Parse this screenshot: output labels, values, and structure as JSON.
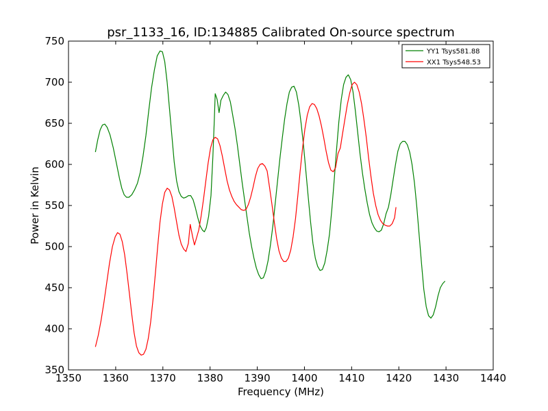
{
  "chart_data": {
    "type": "line",
    "title": "psr_1133_16, ID:134885 Calibrated On-source spectrum",
    "xlabel": "Frequency (MHz)",
    "ylabel": "Power in Kelvin",
    "xlim": [
      1350,
      1440
    ],
    "ylim": [
      350,
      750
    ],
    "xticks": [
      1350,
      1360,
      1370,
      1380,
      1390,
      1400,
      1410,
      1420,
      1430,
      1440
    ],
    "yticks": [
      350,
      400,
      450,
      500,
      550,
      600,
      650,
      700,
      750
    ],
    "grid": false,
    "legend_position": "top-right",
    "series": [
      {
        "name": "YY1 Tsys581.88",
        "color": "#008000",
        "points": [
          [
            1355.7,
            615
          ],
          [
            1356.2,
            630
          ],
          [
            1356.7,
            642
          ],
          [
            1357.2,
            648
          ],
          [
            1357.7,
            649
          ],
          [
            1358.2,
            645
          ],
          [
            1358.8,
            636
          ],
          [
            1359.5,
            620
          ],
          [
            1360.2,
            600
          ],
          [
            1360.8,
            583
          ],
          [
            1361.3,
            571
          ],
          [
            1361.8,
            563
          ],
          [
            1362.3,
            560
          ],
          [
            1362.8,
            560
          ],
          [
            1363.4,
            563
          ],
          [
            1364.0,
            569
          ],
          [
            1364.6,
            577
          ],
          [
            1365.2,
            590
          ],
          [
            1365.8,
            610
          ],
          [
            1366.4,
            635
          ],
          [
            1367.0,
            665
          ],
          [
            1367.6,
            693
          ],
          [
            1368.2,
            715
          ],
          [
            1368.8,
            732
          ],
          [
            1369.4,
            738
          ],
          [
            1369.9,
            737
          ],
          [
            1370.4,
            725
          ],
          [
            1370.9,
            700
          ],
          [
            1371.4,
            668
          ],
          [
            1371.9,
            635
          ],
          [
            1372.4,
            603
          ],
          [
            1372.9,
            580
          ],
          [
            1373.4,
            567
          ],
          [
            1373.9,
            561
          ],
          [
            1374.4,
            559
          ],
          [
            1374.9,
            560
          ],
          [
            1375.4,
            562
          ],
          [
            1375.9,
            562
          ],
          [
            1376.4,
            557
          ],
          [
            1376.9,
            547
          ],
          [
            1377.4,
            535
          ],
          [
            1377.9,
            525
          ],
          [
            1378.4,
            520
          ],
          [
            1378.8,
            518
          ],
          [
            1379.2,
            523
          ],
          [
            1379.7,
            537
          ],
          [
            1380.2,
            562
          ],
          [
            1380.6,
            610
          ],
          [
            1380.9,
            655
          ],
          [
            1381.1,
            686
          ],
          [
            1381.5,
            679
          ],
          [
            1381.9,
            663
          ],
          [
            1382.3,
            678
          ],
          [
            1382.8,
            684
          ],
          [
            1383.3,
            688
          ],
          [
            1383.8,
            685
          ],
          [
            1384.3,
            676
          ],
          [
            1384.8,
            660
          ],
          [
            1385.3,
            643
          ],
          [
            1385.8,
            623
          ],
          [
            1386.3,
            600
          ],
          [
            1386.8,
            578
          ],
          [
            1387.3,
            557
          ],
          [
            1387.8,
            537
          ],
          [
            1388.3,
            517
          ],
          [
            1388.8,
            500
          ],
          [
            1389.3,
            486
          ],
          [
            1389.8,
            474
          ],
          [
            1390.3,
            466
          ],
          [
            1390.8,
            461
          ],
          [
            1391.3,
            462
          ],
          [
            1391.8,
            470
          ],
          [
            1392.3,
            483
          ],
          [
            1392.8,
            502
          ],
          [
            1393.3,
            525
          ],
          [
            1393.8,
            552
          ],
          [
            1394.3,
            580
          ],
          [
            1394.8,
            607
          ],
          [
            1395.3,
            632
          ],
          [
            1395.8,
            655
          ],
          [
            1396.3,
            674
          ],
          [
            1396.8,
            688
          ],
          [
            1397.3,
            694
          ],
          [
            1397.8,
            695
          ],
          [
            1398.3,
            688
          ],
          [
            1398.8,
            672
          ],
          [
            1399.3,
            650
          ],
          [
            1399.8,
            623
          ],
          [
            1400.3,
            592
          ],
          [
            1400.8,
            560
          ],
          [
            1401.3,
            530
          ],
          [
            1401.8,
            504
          ],
          [
            1402.3,
            486
          ],
          [
            1402.8,
            476
          ],
          [
            1403.3,
            471
          ],
          [
            1403.8,
            472
          ],
          [
            1404.3,
            480
          ],
          [
            1404.8,
            495
          ],
          [
            1405.3,
            515
          ],
          [
            1405.8,
            545
          ],
          [
            1406.3,
            580
          ],
          [
            1406.8,
            618
          ],
          [
            1407.3,
            652
          ],
          [
            1407.8,
            679
          ],
          [
            1408.3,
            697
          ],
          [
            1408.8,
            706
          ],
          [
            1409.3,
            709
          ],
          [
            1409.8,
            703
          ],
          [
            1410.3,
            688
          ],
          [
            1410.8,
            665
          ],
          [
            1411.3,
            638
          ],
          [
            1411.8,
            612
          ],
          [
            1412.3,
            589
          ],
          [
            1412.8,
            570
          ],
          [
            1413.3,
            553
          ],
          [
            1413.8,
            539
          ],
          [
            1414.3,
            529
          ],
          [
            1414.8,
            523
          ],
          [
            1415.3,
            519
          ],
          [
            1415.8,
            518
          ],
          [
            1416.3,
            520
          ],
          [
            1416.8,
            528
          ],
          [
            1417.3,
            540
          ],
          [
            1417.8,
            548
          ],
          [
            1418.3,
            563
          ],
          [
            1418.8,
            582
          ],
          [
            1419.3,
            600
          ],
          [
            1419.8,
            616
          ],
          [
            1420.3,
            625
          ],
          [
            1420.8,
            628
          ],
          [
            1421.3,
            628
          ],
          [
            1421.8,
            624
          ],
          [
            1422.3,
            615
          ],
          [
            1422.8,
            600
          ],
          [
            1423.3,
            578
          ],
          [
            1423.8,
            549
          ],
          [
            1424.3,
            515
          ],
          [
            1424.8,
            480
          ],
          [
            1425.3,
            448
          ],
          [
            1425.8,
            427
          ],
          [
            1426.3,
            416
          ],
          [
            1426.8,
            413
          ],
          [
            1427.3,
            417
          ],
          [
            1427.8,
            427
          ],
          [
            1428.3,
            440
          ],
          [
            1428.8,
            450
          ],
          [
            1429.3,
            455
          ],
          [
            1429.8,
            458
          ]
        ]
      },
      {
        "name": "XX1 Tsys548.53",
        "color": "#ff0000",
        "points": [
          [
            1355.7,
            378
          ],
          [
            1356.3,
            392
          ],
          [
            1356.9,
            410
          ],
          [
            1357.5,
            432
          ],
          [
            1358.1,
            456
          ],
          [
            1358.7,
            480
          ],
          [
            1359.3,
            500
          ],
          [
            1359.9,
            512
          ],
          [
            1360.4,
            517
          ],
          [
            1360.9,
            515
          ],
          [
            1361.4,
            506
          ],
          [
            1361.9,
            490
          ],
          [
            1362.4,
            468
          ],
          [
            1362.9,
            443
          ],
          [
            1363.4,
            418
          ],
          [
            1363.9,
            395
          ],
          [
            1364.4,
            379
          ],
          [
            1364.9,
            371
          ],
          [
            1365.4,
            368
          ],
          [
            1365.9,
            369
          ],
          [
            1366.4,
            375
          ],
          [
            1366.9,
            388
          ],
          [
            1367.4,
            408
          ],
          [
            1367.9,
            435
          ],
          [
            1368.4,
            467
          ],
          [
            1368.9,
            500
          ],
          [
            1369.4,
            530
          ],
          [
            1369.9,
            552
          ],
          [
            1370.4,
            566
          ],
          [
            1370.9,
            571
          ],
          [
            1371.4,
            569
          ],
          [
            1371.9,
            561
          ],
          [
            1372.4,
            547
          ],
          [
            1372.9,
            530
          ],
          [
            1373.4,
            514
          ],
          [
            1373.9,
            503
          ],
          [
            1374.4,
            497
          ],
          [
            1374.9,
            494
          ],
          [
            1375.4,
            504
          ],
          [
            1375.8,
            527
          ],
          [
            1376.3,
            512
          ],
          [
            1376.7,
            502
          ],
          [
            1377.1,
            510
          ],
          [
            1377.6,
            520
          ],
          [
            1378.1,
            537
          ],
          [
            1378.6,
            557
          ],
          [
            1379.1,
            580
          ],
          [
            1379.6,
            602
          ],
          [
            1380.1,
            620
          ],
          [
            1380.6,
            630
          ],
          [
            1381.1,
            633
          ],
          [
            1381.6,
            631
          ],
          [
            1382.1,
            623
          ],
          [
            1382.6,
            610
          ],
          [
            1383.1,
            595
          ],
          [
            1383.6,
            580
          ],
          [
            1384.1,
            569
          ],
          [
            1384.6,
            561
          ],
          [
            1385.1,
            555
          ],
          [
            1385.6,
            551
          ],
          [
            1386.1,
            548
          ],
          [
            1386.6,
            545
          ],
          [
            1387.1,
            544
          ],
          [
            1387.6,
            545
          ],
          [
            1388.1,
            551
          ],
          [
            1388.6,
            560
          ],
          [
            1389.1,
            572
          ],
          [
            1389.6,
            585
          ],
          [
            1390.1,
            595
          ],
          [
            1390.6,
            600
          ],
          [
            1391.1,
            601
          ],
          [
            1391.6,
            598
          ],
          [
            1392.1,
            592
          ],
          [
            1392.6,
            572
          ],
          [
            1393.1,
            552
          ],
          [
            1393.6,
            530
          ],
          [
            1394.1,
            510
          ],
          [
            1394.6,
            495
          ],
          [
            1395.1,
            486
          ],
          [
            1395.6,
            482
          ],
          [
            1396.1,
            482
          ],
          [
            1396.6,
            486
          ],
          [
            1397.1,
            496
          ],
          [
            1397.6,
            512
          ],
          [
            1398.1,
            534
          ],
          [
            1398.6,
            562
          ],
          [
            1399.1,
            592
          ],
          [
            1399.6,
            620
          ],
          [
            1400.1,
            643
          ],
          [
            1400.6,
            660
          ],
          [
            1401.1,
            670
          ],
          [
            1401.6,
            674
          ],
          [
            1402.1,
            673
          ],
          [
            1402.6,
            668
          ],
          [
            1403.1,
            659
          ],
          [
            1403.6,
            647
          ],
          [
            1404.1,
            632
          ],
          [
            1404.6,
            616
          ],
          [
            1405.1,
            602
          ],
          [
            1405.6,
            593
          ],
          [
            1406.1,
            591
          ],
          [
            1406.6,
            596
          ],
          [
            1407.1,
            613
          ],
          [
            1407.6,
            620
          ],
          [
            1408.1,
            638
          ],
          [
            1408.6,
            656
          ],
          [
            1409.1,
            673
          ],
          [
            1409.6,
            687
          ],
          [
            1410.1,
            697
          ],
          [
            1410.6,
            700
          ],
          [
            1411.1,
            697
          ],
          [
            1411.6,
            688
          ],
          [
            1412.1,
            674
          ],
          [
            1412.6,
            655
          ],
          [
            1413.1,
            633
          ],
          [
            1413.6,
            608
          ],
          [
            1414.1,
            585
          ],
          [
            1414.6,
            565
          ],
          [
            1415.1,
            550
          ],
          [
            1415.6,
            539
          ],
          [
            1416.1,
            532
          ],
          [
            1416.6,
            528
          ],
          [
            1417.1,
            526
          ],
          [
            1417.6,
            525
          ],
          [
            1418.1,
            525
          ],
          [
            1418.6,
            528
          ],
          [
            1419.1,
            535
          ],
          [
            1419.4,
            548
          ]
        ]
      }
    ]
  }
}
